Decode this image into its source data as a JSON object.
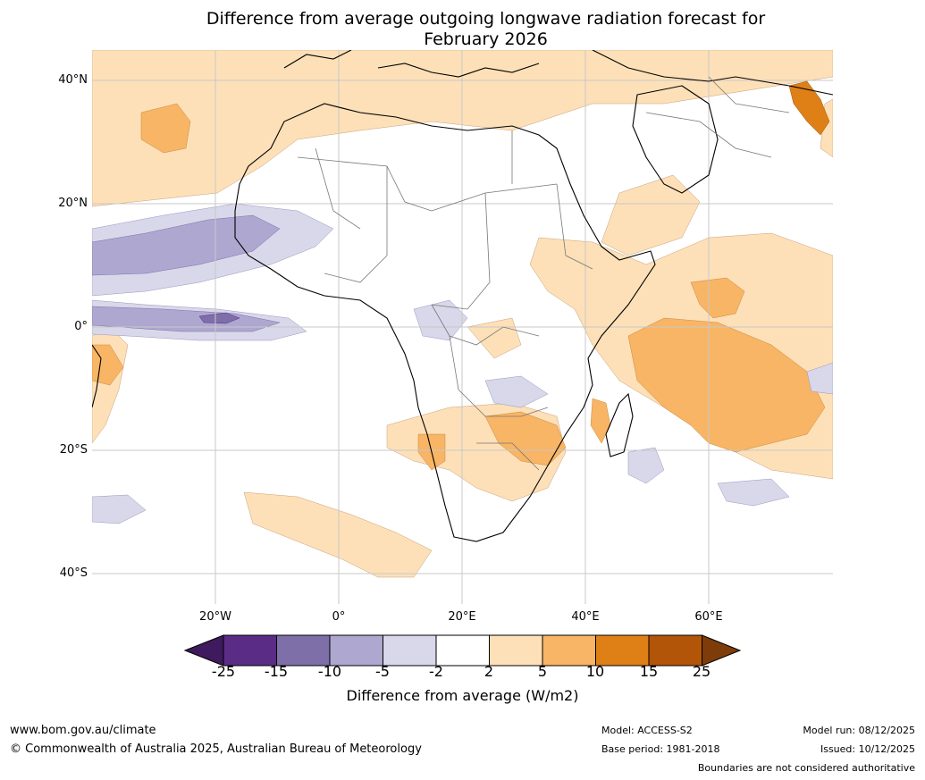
{
  "title": {
    "line1": "Difference from average outgoing longwave radiation forecast for",
    "line2": "February 2026"
  },
  "map": {
    "region": "Africa",
    "lat_labels": [
      "40°N",
      "20°N",
      "0°",
      "20°S",
      "40°S"
    ],
    "lon_labels": [
      "20°W",
      "0°",
      "20°E",
      "40°E",
      "60°E"
    ]
  },
  "legend": {
    "label": "Difference from average (W/m2)",
    "ticks": [
      "-25",
      "-15",
      "-10",
      "-5",
      "-2",
      "2",
      "5",
      "10",
      "15",
      "25"
    ],
    "colors": [
      "#3f1a5e",
      "#5b2c86",
      "#7e6fa9",
      "#aea7d0",
      "#d8d8ea",
      "#ffffff",
      "#fde0b8",
      "#f8b565",
      "#de8016",
      "#b35509",
      "#7d3c09"
    ]
  },
  "footer": {
    "website": "www.bom.gov.au/climate",
    "copyright": "© Commonwealth of Australia 2025, Australian Bureau of Meteorology",
    "model": "Model: ACCESS-S2",
    "base_period": "Base period: 1981-2018",
    "model_run": "Model run: 08/12/2025",
    "issued": "Issued: 10/12/2025",
    "disclaimer": "Boundaries are not considered authoritative"
  }
}
